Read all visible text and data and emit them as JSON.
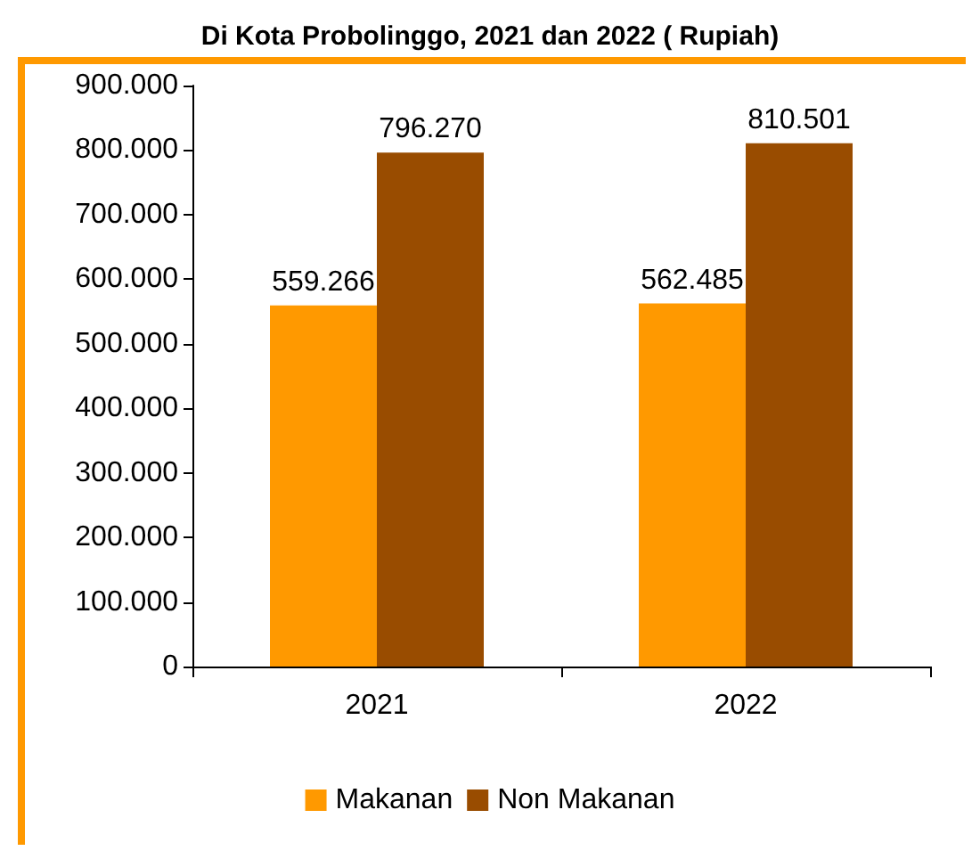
{
  "chart_data": {
    "type": "bar",
    "title": "Di Kota Probolinggo, 2021 dan 2022 ( Rupiah)",
    "categories": [
      "2021",
      "2022"
    ],
    "series": [
      {
        "name": "Makanan",
        "color": "#ff9900",
        "values": [
          559266,
          562485
        ],
        "value_labels": [
          "559.266",
          "562.485"
        ]
      },
      {
        "name": "Non Makanan",
        "color": "#994c00",
        "values": [
          796270,
          810501
        ],
        "value_labels": [
          "796.270",
          "810.501"
        ]
      }
    ],
    "ylim": [
      0,
      900000
    ],
    "yticks": [
      0,
      {
        "value": 100000,
        "label": "100.000"
      },
      {
        "value": 200000,
        "label": "200.000"
      },
      {
        "value": 300000,
        "label": "300.000"
      },
      {
        "value": 400000,
        "label": "400.000"
      },
      {
        "value": 500000,
        "label": "500.000"
      },
      {
        "value": 600000,
        "label": "600.000"
      },
      {
        "value": 700000,
        "label": "700.000"
      },
      {
        "value": 800000,
        "label": "800.000"
      },
      {
        "value": 900000,
        "label": "900.000"
      }
    ],
    "grid": false,
    "legend": "bottom"
  }
}
